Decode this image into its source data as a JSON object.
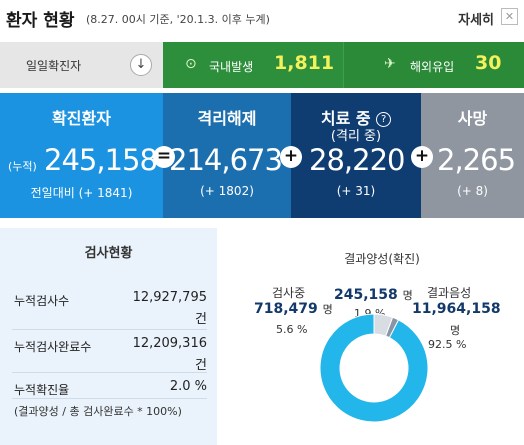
{
  "header": {
    "title": "환자 현황",
    "subtitle": "(8.27. 00시 기준, '20.1.3. 이후 누계)",
    "detail_label": "자세히",
    "detail_icon": "close-icon"
  },
  "daily": {
    "label": "일일확진자",
    "toggle_icon": "arrow-down-icon",
    "domestic": {
      "icon": "pin-icon",
      "label": "국내발생",
      "value": "1,811"
    },
    "imported": {
      "icon": "plane-icon",
      "label": "해외유입",
      "value": "30"
    }
  },
  "stats": {
    "confirmed": {
      "title": "확진환자",
      "prefix": "(누적)",
      "value": "245,158",
      "change": "전일대비 (+ 1841)"
    },
    "released": {
      "title": "격리해제",
      "value": "214,673",
      "change": "(+ 1802)"
    },
    "treating": {
      "title": "치료 중",
      "subtitle": "(격리 중)",
      "value": "28,220",
      "change": "(+ 31)"
    },
    "deaths": {
      "title": "사망",
      "value": "2,265",
      "change": "(+ 8)"
    },
    "operators": [
      "=",
      "+",
      "+"
    ]
  },
  "tests": {
    "title": "검사현황",
    "rows": [
      {
        "label": "누적검사수",
        "value": "12,927,795",
        "unit": "건"
      },
      {
        "label": "누적검사완료수",
        "value": "12,209,316",
        "unit": "건"
      },
      {
        "label": "누적확진율",
        "value": "2.0 %",
        "unit": ""
      }
    ],
    "note": "(결과양성 / 총 검사완료수 * 100%)"
  },
  "results": {
    "testing": {
      "label": "검사중",
      "value": "718,479",
      "unit": "명",
      "pct": "5.6 %"
    },
    "positive": {
      "label": "결과양성(확진)",
      "value": "245,158",
      "unit": "명",
      "pct": "1.9 %"
    },
    "negative": {
      "label": "결과음성",
      "value": "11,964,158",
      "unit": "명",
      "pct": "92.5 %"
    },
    "colors": {
      "testing": "#d7dde3",
      "positive": "#8a96a6",
      "negative": "#22b6ea"
    }
  },
  "chart_data": {
    "type": "pie",
    "categories": [
      "검사중",
      "결과양성(확진)",
      "결과음성"
    ],
    "values": [
      5.6,
      1.9,
      92.5
    ]
  }
}
